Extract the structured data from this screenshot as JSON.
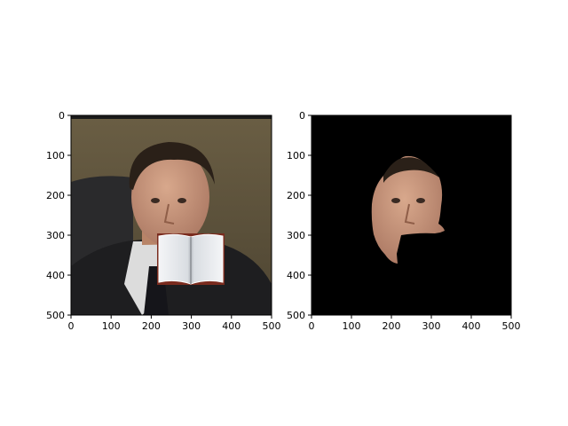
{
  "chart_data": [
    {
      "type": "image",
      "content": "photo of man with open-book occluder over mouth",
      "xlim": [
        0,
        500
      ],
      "ylim": [
        500,
        0
      ],
      "xticks": [
        0,
        100,
        200,
        300,
        400,
        500
      ],
      "yticks": [
        0,
        100,
        200,
        300,
        400,
        500
      ],
      "xticklabels": [
        "0",
        "100",
        "200",
        "300",
        "400",
        "500"
      ],
      "yticklabels": [
        "0",
        "100",
        "200",
        "300",
        "400",
        "500"
      ],
      "title": "",
      "xlabel": "",
      "ylabel": "",
      "colors": {
        "background": "#5a4f38",
        "suit": "#1e1e20",
        "skin": "#c79478",
        "book_page": "#eef0f2",
        "book_cover": "#7a2b1e"
      }
    },
    {
      "type": "image",
      "content": "segmented face mask on black background",
      "xlim": [
        0,
        500
      ],
      "ylim": [
        500,
        0
      ],
      "xticks": [
        0,
        100,
        200,
        300,
        400,
        500
      ],
      "yticks": [
        0,
        100,
        200,
        300,
        400,
        500
      ],
      "xticklabels": [
        "0",
        "100",
        "200",
        "300",
        "400",
        "500"
      ],
      "yticklabels": [
        "0",
        "100",
        "200",
        "300",
        "400",
        "500"
      ],
      "title": "",
      "xlabel": "",
      "ylabel": "",
      "colors": {
        "background": "#000000",
        "skin": "#c79478"
      }
    }
  ]
}
